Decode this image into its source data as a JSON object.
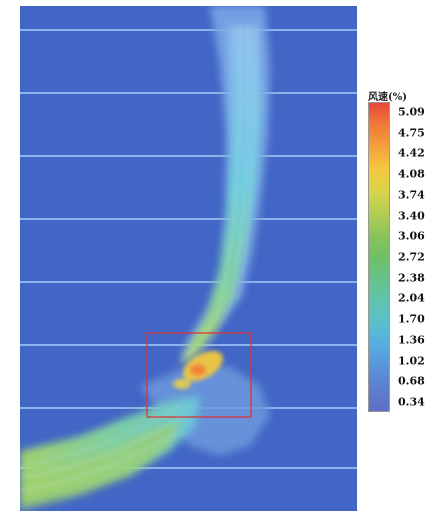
{
  "legend": {
    "title": "风速(%)",
    "ticks": [
      "5.09",
      "4.75",
      "4.42",
      "4.08",
      "3.74",
      "3.40",
      "3.06",
      "2.72",
      "2.38",
      "2.04",
      "1.70",
      "1.36",
      "1.02",
      "0.68",
      "0.34"
    ],
    "colors": [
      "#e8483a",
      "#ef7a3a",
      "#f2a23c",
      "#f4c93e",
      "#d9d44a",
      "#b4cd52",
      "#8cc35a",
      "#6fbf66",
      "#67c28a",
      "#5fc4ad",
      "#59c0cc",
      "#56addf",
      "#5a93d8",
      "#5d7fcf",
      "#5f6fc8"
    ]
  },
  "colors": {
    "background_field": "#4266c6",
    "stream_light": "#a8c8f0",
    "highlight_box": "#e0302a"
  }
}
